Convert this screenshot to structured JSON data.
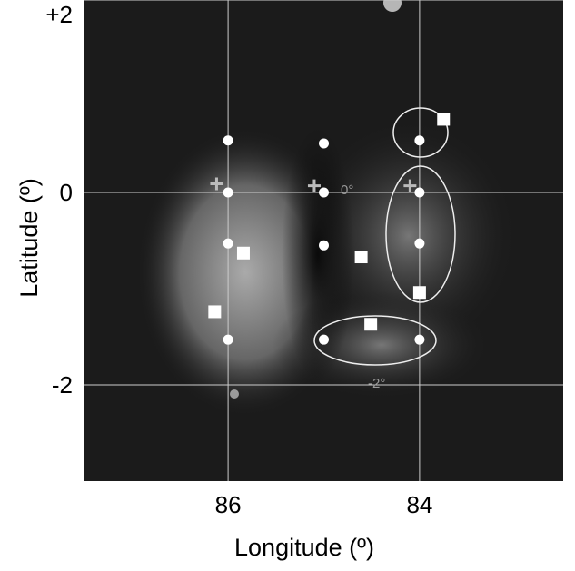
{
  "chart_data": {
    "type": "scatter",
    "xlabel": "Longitude (º)",
    "ylabel": "Latitude (º)",
    "xlim": [
      87.5,
      82.5
    ],
    "ylim": [
      -3,
      2
    ],
    "xticks": [
      86,
      84
    ],
    "yticks": [
      {
        "value": 2,
        "label": "+2"
      },
      0,
      -2
    ],
    "grid": true,
    "annotations": [
      "0°",
      "-2°"
    ],
    "series": [
      {
        "marker": "circle",
        "color": "#ffffff",
        "x": [
          86,
          86,
          86,
          86,
          85,
          85,
          85,
          85,
          84,
          84,
          84,
          84
        ],
        "y": [
          0.54,
          0,
          -0.53,
          -1.53,
          0.51,
          0,
          -0.55,
          -1.53,
          0.54,
          0,
          -0.53,
          -1.53
        ]
      },
      {
        "marker": "square",
        "color": "#ffffff",
        "x": [
          83.75,
          85.84,
          84.61,
          84,
          86.14,
          84.51
        ],
        "y": [
          0.76,
          -0.63,
          -0.67,
          -1.04,
          -1.24,
          -1.37
        ]
      },
      {
        "marker": "cross",
        "color": "#bbbbbb",
        "x": [
          86.12,
          85.1,
          84.1
        ],
        "y": [
          0.09,
          0.07,
          0.07
        ]
      }
    ]
  }
}
